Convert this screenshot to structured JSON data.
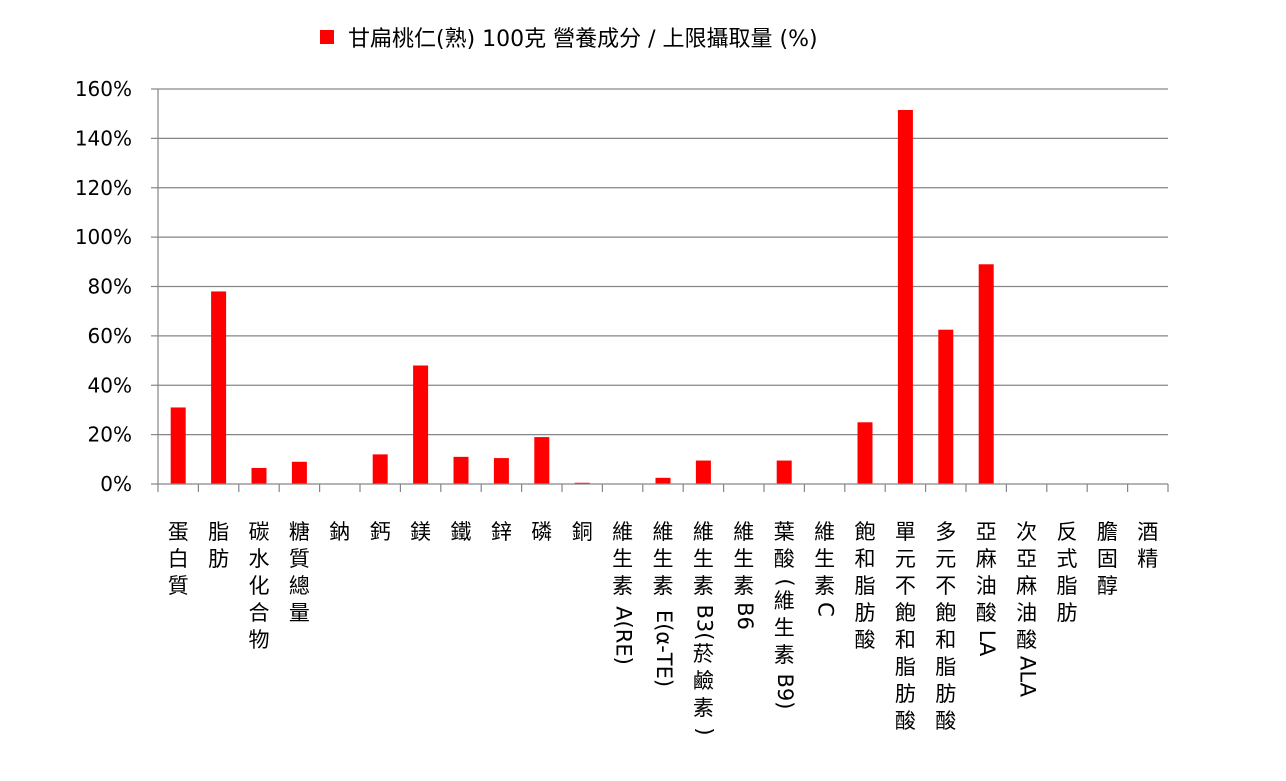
{
  "chart_data": {
    "type": "bar",
    "legend_position": "top",
    "grid": true,
    "series": [
      {
        "name": "甘扁桃仁(熟) 100克 營養成分 / 上限攝取量 (%)",
        "color": "#ff0000",
        "values": [
          31,
          78,
          6.5,
          9,
          0,
          12,
          48,
          11,
          10.5,
          19,
          0.5,
          0,
          2.5,
          9.5,
          0,
          9.5,
          0,
          25,
          151.5,
          62.5,
          89,
          0,
          0,
          0,
          0
        ]
      }
    ],
    "categories": [
      "蛋白質",
      "脂肪",
      "碳水化合物",
      "糖質總量",
      "鈉",
      "鈣",
      "鎂",
      "鐵",
      "鋅",
      "磷",
      "銅",
      "維生素A(RE)",
      "維生素E(α-TE)",
      "維生素B3(菸鹼素)",
      "維生素B6",
      "葉酸(維生素B9)",
      "維生素C",
      "飽和脂肪酸",
      "單元不飽和脂肪酸",
      "多元不飽和脂肪酸",
      "亞麻油酸LA",
      "次亞麻油酸ALA",
      "反式脂肪",
      "膽固醇",
      "酒精"
    ],
    "y_ticks": [
      "0%",
      "20%",
      "40%",
      "60%",
      "80%",
      "100%",
      "120%",
      "140%",
      "160%"
    ],
    "ylim": [
      0,
      160
    ]
  }
}
